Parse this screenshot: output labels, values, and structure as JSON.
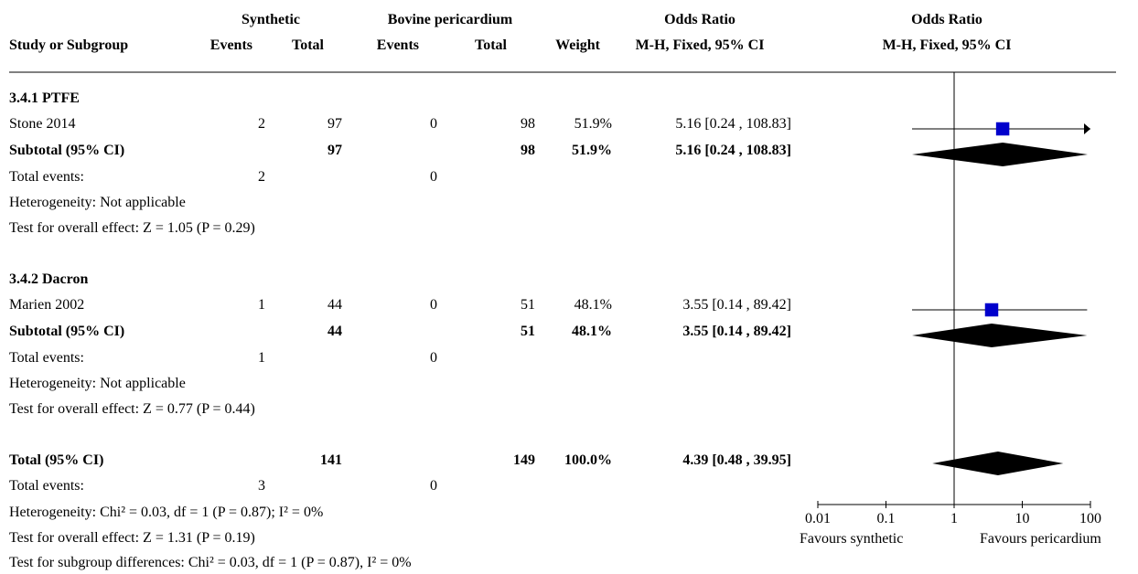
{
  "header": {
    "synthetic": "Synthetic",
    "bovine": "Bovine pericardium",
    "or_top1": "Odds Ratio",
    "or_top2": "Odds Ratio",
    "study_or_subgroup": "Study or Subgroup",
    "events1": "Events",
    "total1": "Total",
    "events2": "Events",
    "total2": "Total",
    "weight": "Weight",
    "method1": "M-H, Fixed, 95% CI",
    "method2": "M-H, Fixed, 95% CI"
  },
  "groups": [
    {
      "title": "3.4.1 PTFE",
      "study": {
        "name": "Stone 2014",
        "e1": "2",
        "t1": "97",
        "e2": "0",
        "t2": "98",
        "weight": "51.9%",
        "ci": "5.16 [0.24 , 108.83]"
      },
      "subtotal": {
        "label": "Subtotal (95% CI)",
        "t1": "97",
        "t2": "98",
        "weight": "51.9%",
        "ci": "5.16 [0.24 , 108.83]"
      },
      "total_events": {
        "label": "Total events:",
        "e1": "2",
        "e2": "0"
      },
      "heterogeneity": "Heterogeneity: Not applicable",
      "overall": "Test for overall effect: Z = 1.05 (P = 0.29)"
    },
    {
      "title": "3.4.2 Dacron",
      "study": {
        "name": "Marien 2002",
        "e1": "1",
        "t1": "44",
        "e2": "0",
        "t2": "51",
        "weight": "48.1%",
        "ci": "3.55 [0.14 , 89.42]"
      },
      "subtotal": {
        "label": "Subtotal (95% CI)",
        "t1": "44",
        "t2": "51",
        "weight": "48.1%",
        "ci": "3.55 [0.14 , 89.42]"
      },
      "total_events": {
        "label": "Total events:",
        "e1": "1",
        "e2": "0"
      },
      "heterogeneity": "Heterogeneity: Not applicable",
      "overall": "Test for overall effect: Z = 0.77 (P = 0.44)"
    }
  ],
  "total": {
    "label": "Total (95% CI)",
    "t1": "141",
    "t2": "149",
    "weight": "100.0%",
    "ci": "4.39 [0.48 , 39.95]",
    "events_label": "Total events:",
    "e1": "3",
    "e2": "0",
    "heterogeneity": "Heterogeneity: Chi² = 0.03, df = 1 (P = 0.87); I² = 0%",
    "overall": "Test for overall effect: Z = 1.31 (P = 0.19)",
    "subgroup": "Test for subgroup differences: Chi² = 0.03, df = 1 (P = 0.87), I² = 0%"
  },
  "axis": {
    "left_label": "Favours synthetic",
    "right_label": "Favours pericardium"
  },
  "colors": {
    "square": "#0000cc",
    "diamond": "#000000",
    "line": "#000000"
  },
  "chart_data": {
    "type": "forest",
    "scale": "log",
    "xlim": [
      0.01,
      100
    ],
    "null_value": 1,
    "ticks": [
      {
        "value": 0.01,
        "label": "0.01"
      },
      {
        "value": 0.1,
        "label": "0.1"
      },
      {
        "value": 1,
        "label": "1"
      },
      {
        "value": 10,
        "label": "10"
      },
      {
        "value": 100,
        "label": "100"
      }
    ],
    "studies": [
      {
        "name": "Stone 2014",
        "or": 5.16,
        "lower": 0.24,
        "upper": 108.83,
        "weight": 51.9,
        "arrow_right": true
      },
      {
        "name": "Marien 2002",
        "or": 3.55,
        "lower": 0.14,
        "upper": 89.42,
        "weight": 48.1,
        "arrow_right": false
      }
    ],
    "diamonds": [
      {
        "name": "Subtotal PTFE",
        "or": 5.16,
        "lower": 0.24,
        "upper": 108.83
      },
      {
        "name": "Subtotal Dacron",
        "or": 3.55,
        "lower": 0.14,
        "upper": 89.42
      },
      {
        "name": "Total",
        "or": 4.39,
        "lower": 0.48,
        "upper": 39.95
      }
    ]
  }
}
